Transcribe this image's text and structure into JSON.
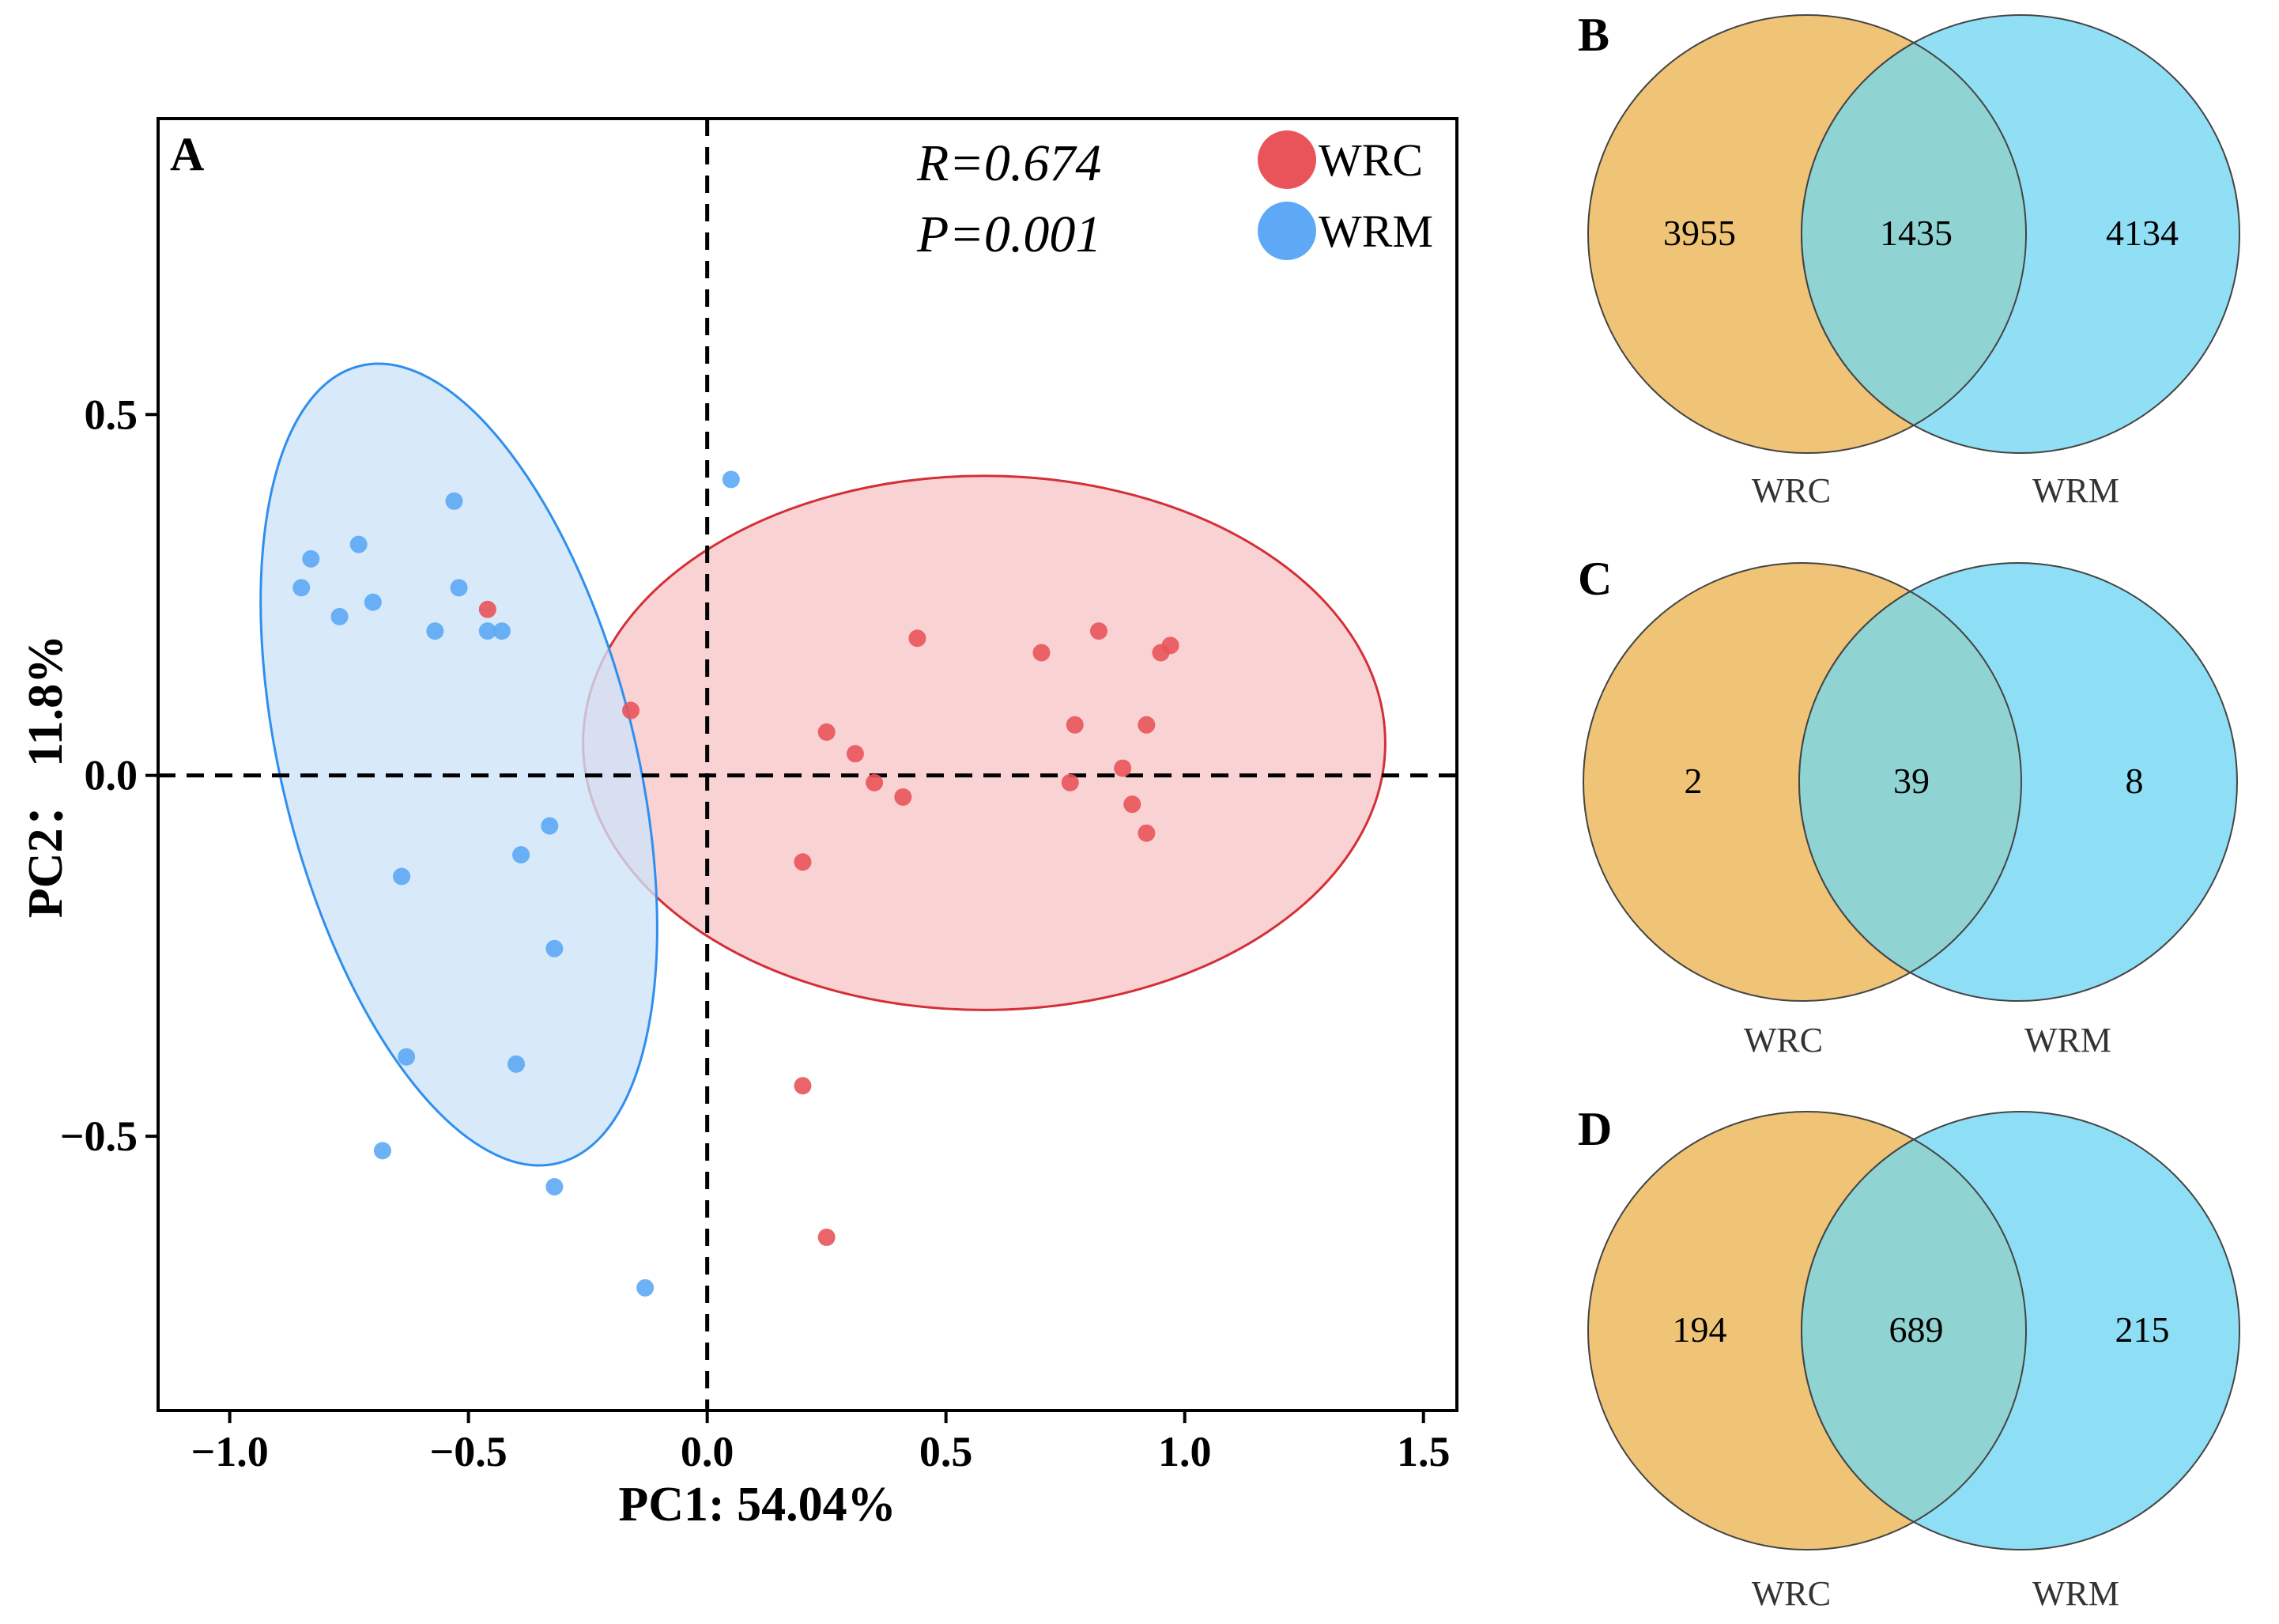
{
  "chart_data": [
    {
      "panel": "A",
      "type": "scatter",
      "xlabel": "PC1: 54.04%",
      "ylabel": "PC2： 11.8%",
      "xlim": [
        -1.15,
        1.57
      ],
      "ylim": [
        -0.88,
        0.91
      ],
      "x_ticks": [
        -1.0,
        -0.5,
        0.0,
        0.5,
        1.0,
        1.5
      ],
      "x_tick_labels": [
        "−1.0",
        "−0.5",
        "0.0",
        "0.5",
        "1.0",
        "1.5"
      ],
      "y_ticks": [
        0.5,
        0.0,
        -0.5
      ],
      "y_tick_labels": [
        "0.5",
        "0.0",
        "−0.5"
      ],
      "reference_lines": {
        "x": 0,
        "y": 0
      },
      "stat_text": [
        "R=0.674",
        "P=0.001"
      ],
      "legend": {
        "placement": "top-right"
      },
      "series": [
        {
          "name": "WRC",
          "color": "#E8545A",
          "ellipse": {
            "cx": 0.58,
            "cy": 0.045,
            "rx": 0.84,
            "ry": 0.37
          },
          "points": [
            [
              -0.46,
              0.23
            ],
            [
              -0.16,
              0.09
            ],
            [
              0.44,
              0.19
            ],
            [
              0.25,
              0.06
            ],
            [
              0.31,
              0.03
            ],
            [
              0.35,
              -0.01
            ],
            [
              0.41,
              -0.03
            ],
            [
              0.2,
              -0.12
            ],
            [
              0.7,
              0.17
            ],
            [
              0.82,
              0.2
            ],
            [
              0.95,
              0.17
            ],
            [
              0.97,
              0.18
            ],
            [
              0.77,
              0.07
            ],
            [
              0.92,
              0.07
            ],
            [
              0.87,
              0.01
            ],
            [
              0.76,
              -0.01
            ],
            [
              0.89,
              -0.04
            ],
            [
              0.92,
              -0.08
            ],
            [
              0.2,
              -0.43
            ],
            [
              0.25,
              -0.64
            ]
          ]
        },
        {
          "name": "WRM",
          "color": "#5DA9F5",
          "ellipse": {
            "cx": -0.52,
            "cy": 0.015,
            "rx": 0.86,
            "ry": 0.245,
            "angle_deg": 76
          },
          "points": [
            [
              -0.85,
              0.26
            ],
            [
              -0.83,
              0.3
            ],
            [
              -0.73,
              0.32
            ],
            [
              -0.77,
              0.22
            ],
            [
              -0.7,
              0.24
            ],
            [
              -0.53,
              0.38
            ],
            [
              -0.52,
              0.26
            ],
            [
              -0.57,
              0.2
            ],
            [
              -0.46,
              0.2
            ],
            [
              -0.43,
              0.2
            ],
            [
              0.05,
              0.41
            ],
            [
              -0.33,
              -0.07
            ],
            [
              -0.39,
              -0.11
            ],
            [
              -0.64,
              -0.14
            ],
            [
              -0.32,
              -0.24
            ],
            [
              -0.63,
              -0.39
            ],
            [
              -0.4,
              -0.4
            ],
            [
              -0.68,
              -0.52
            ],
            [
              -0.32,
              -0.57
            ],
            [
              -0.13,
              -0.71
            ]
          ]
        }
      ]
    },
    {
      "panel": "B",
      "type": "venn",
      "sets": [
        "WRC",
        "WRM"
      ],
      "values": {
        "WRC_only": 3955,
        "shared": 1435,
        "WRM_only": 4134
      },
      "colors": [
        "#EFC477",
        "#8EDEF5"
      ]
    },
    {
      "panel": "C",
      "type": "venn",
      "sets": [
        "WRC",
        "WRM"
      ],
      "values": {
        "WRC_only": 2,
        "shared": 39,
        "WRM_only": 8
      },
      "colors": [
        "#EFC477",
        "#8EDEF5"
      ]
    },
    {
      "panel": "D",
      "type": "venn",
      "sets": [
        "WRC",
        "WRM"
      ],
      "values": {
        "WRC_only": 194,
        "shared": 689,
        "WRM_only": 215
      },
      "colors": [
        "#EFC477",
        "#8EDEF5"
      ]
    }
  ]
}
